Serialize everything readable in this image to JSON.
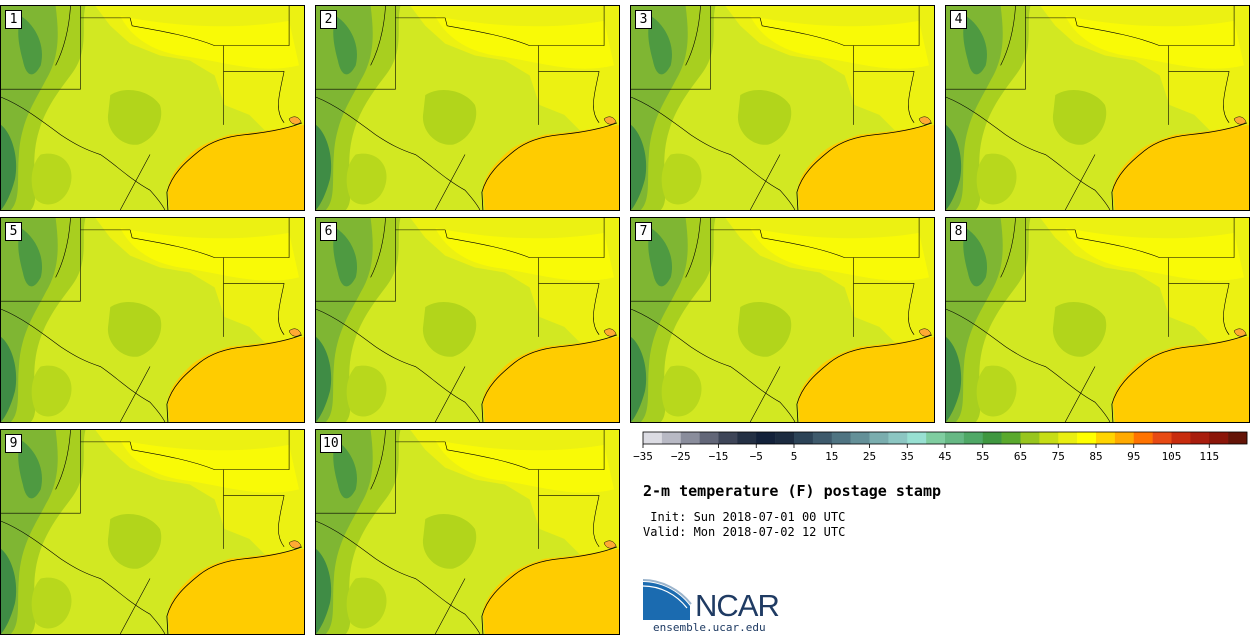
{
  "stamps": [
    {
      "label": "1"
    },
    {
      "label": "2"
    },
    {
      "label": "3"
    },
    {
      "label": "4"
    },
    {
      "label": "5"
    },
    {
      "label": "6"
    },
    {
      "label": "7"
    },
    {
      "label": "8"
    },
    {
      "label": "9"
    },
    {
      "label": "10"
    }
  ],
  "colorbar": {
    "colors": [
      "#dcdce3",
      "#b8b9c4",
      "#8a8d9c",
      "#626678",
      "#3e4558",
      "#243044",
      "#13213a",
      "#1c2b40",
      "#2c4357",
      "#3e5a6c",
      "#4f7482",
      "#649098",
      "#7aadae",
      "#8cc6c2",
      "#98e0d2",
      "#7fcda0",
      "#66b884",
      "#4fa866",
      "#3f9740",
      "#5aa92d",
      "#98c51e",
      "#c6dd15",
      "#e9ee11",
      "#ffff00",
      "#ffd400",
      "#ffaa00",
      "#ff7300",
      "#e74a14",
      "#c82c0e",
      "#a81d0e",
      "#8b1509",
      "#641408"
    ],
    "tick_labels": [
      "−35",
      "−25",
      "−15",
      "−5",
      "5",
      "15",
      "25",
      "35",
      "45",
      "55",
      "65",
      "75",
      "85",
      "95",
      "105",
      "115"
    ]
  },
  "title": "2-m temperature (F) postage stamp",
  "init": " Init: Sun 2018-07-01 00 UTC",
  "valid": "Valid: Mon 2018-07-02 12 UTC",
  "logo": {
    "text": "NCAR",
    "url": "ensemble.ucar.edu",
    "color": "#1f3b63",
    "accent": "#1b6bb0"
  }
}
